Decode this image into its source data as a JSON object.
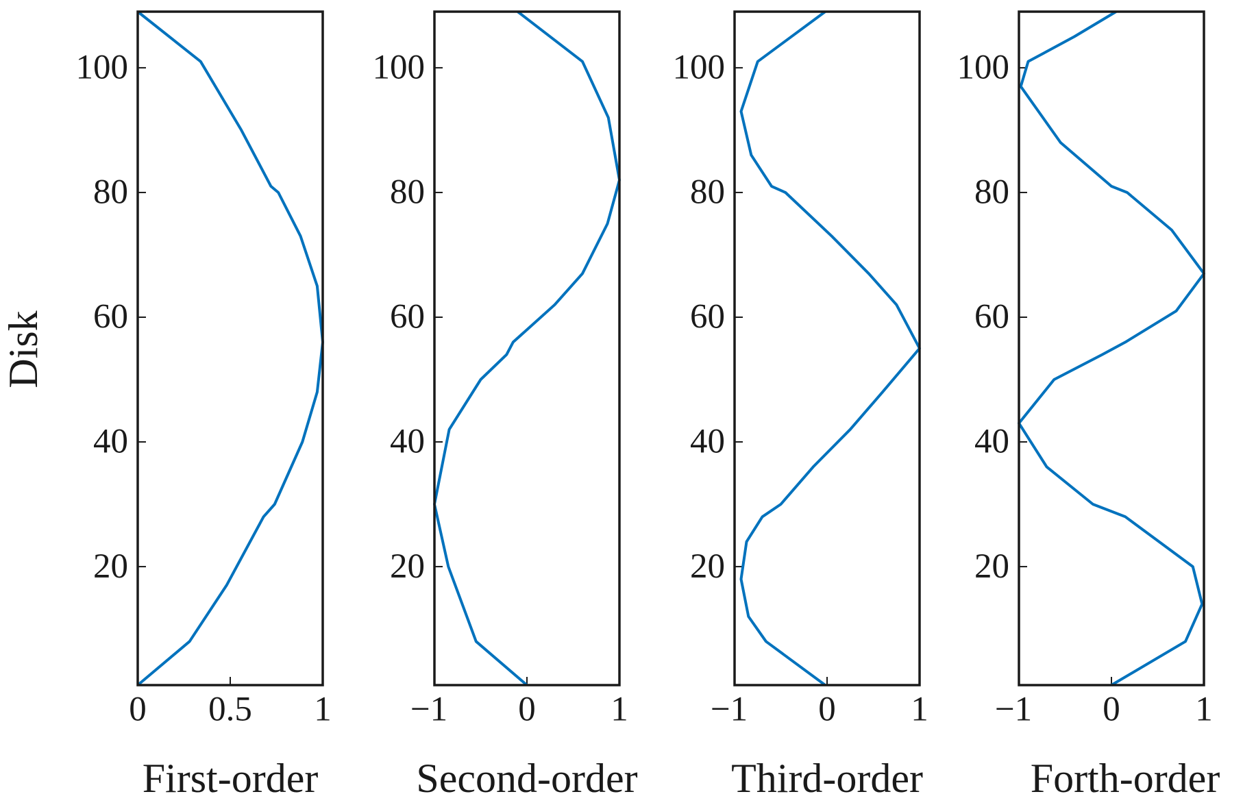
{
  "chart_data": [
    {
      "type": "line",
      "ylabel": "Disk",
      "xlabel": "First-order",
      "color": "#0072bd",
      "y": [
        1,
        8,
        17,
        28,
        30,
        40,
        48,
        56,
        65,
        73,
        80,
        81,
        90,
        101,
        109
      ],
      "values": [
        0,
        0.28,
        0.48,
        0.68,
        0.74,
        0.89,
        0.97,
        1.0,
        0.97,
        0.88,
        0.76,
        0.72,
        0.56,
        0.34,
        0
      ],
      "xlim": [
        0,
        1
      ],
      "xticks": [
        0,
        0.5,
        1
      ],
      "ylim": [
        1,
        109
      ],
      "yticks": [
        20,
        40,
        60,
        80,
        100
      ]
    },
    {
      "type": "line",
      "xlabel": "Second-order",
      "color": "#0072bd",
      "y": [
        1,
        8,
        20,
        30,
        42,
        50,
        54,
        56,
        62,
        67,
        75,
        82,
        92,
        101,
        109
      ],
      "values": [
        0,
        -0.55,
        -0.85,
        -1.0,
        -0.84,
        -0.5,
        -0.22,
        -0.15,
        0.3,
        0.6,
        0.87,
        1.0,
        0.88,
        0.6,
        -0.1
      ],
      "xlim": [
        -1,
        1
      ],
      "xticks": [
        {
          "value": -1,
          "label": "−1"
        },
        0,
        1
      ],
      "ylim": [
        1,
        109
      ],
      "yticks": [
        20,
        40,
        60,
        80,
        100
      ]
    },
    {
      "type": "line",
      "xlabel": "Third-order",
      "color": "#0072bd",
      "y": [
        1,
        8,
        12,
        18,
        24,
        28,
        30,
        36,
        42,
        48,
        55,
        62,
        67,
        73,
        80,
        81,
        86,
        93,
        101,
        109
      ],
      "values": [
        -0.02,
        -0.66,
        -0.85,
        -0.93,
        -0.87,
        -0.7,
        -0.5,
        -0.15,
        0.25,
        0.6,
        1.0,
        0.75,
        0.45,
        0.05,
        -0.45,
        -0.6,
        -0.82,
        -0.93,
        -0.75,
        -0.02
      ],
      "xlim": [
        -1,
        1
      ],
      "xticks": [
        {
          "value": -1,
          "label": "−1"
        },
        0,
        1
      ],
      "ylim": [
        1,
        109
      ],
      "yticks": [
        20,
        40,
        60,
        80,
        100
      ]
    },
    {
      "type": "line",
      "xlabel": "Forth-order",
      "color": "#0072bd",
      "y": [
        1,
        8,
        14,
        20,
        28,
        30,
        36,
        43,
        50,
        54,
        56,
        61,
        67,
        74,
        80,
        81,
        88,
        97,
        101,
        105,
        109
      ],
      "values": [
        0.0,
        0.8,
        0.98,
        0.88,
        0.15,
        -0.2,
        -0.7,
        -1.0,
        -0.62,
        -0.1,
        0.15,
        0.7,
        1.0,
        0.65,
        0.17,
        0.0,
        -0.55,
        -0.98,
        -0.9,
        -0.4,
        0.05
      ],
      "xlim": [
        -1,
        1
      ],
      "xticks": [
        {
          "value": -1,
          "label": "−1"
        },
        0,
        1
      ],
      "ylim": [
        1,
        109
      ],
      "yticks": [
        20,
        40,
        60,
        80,
        100
      ]
    }
  ]
}
